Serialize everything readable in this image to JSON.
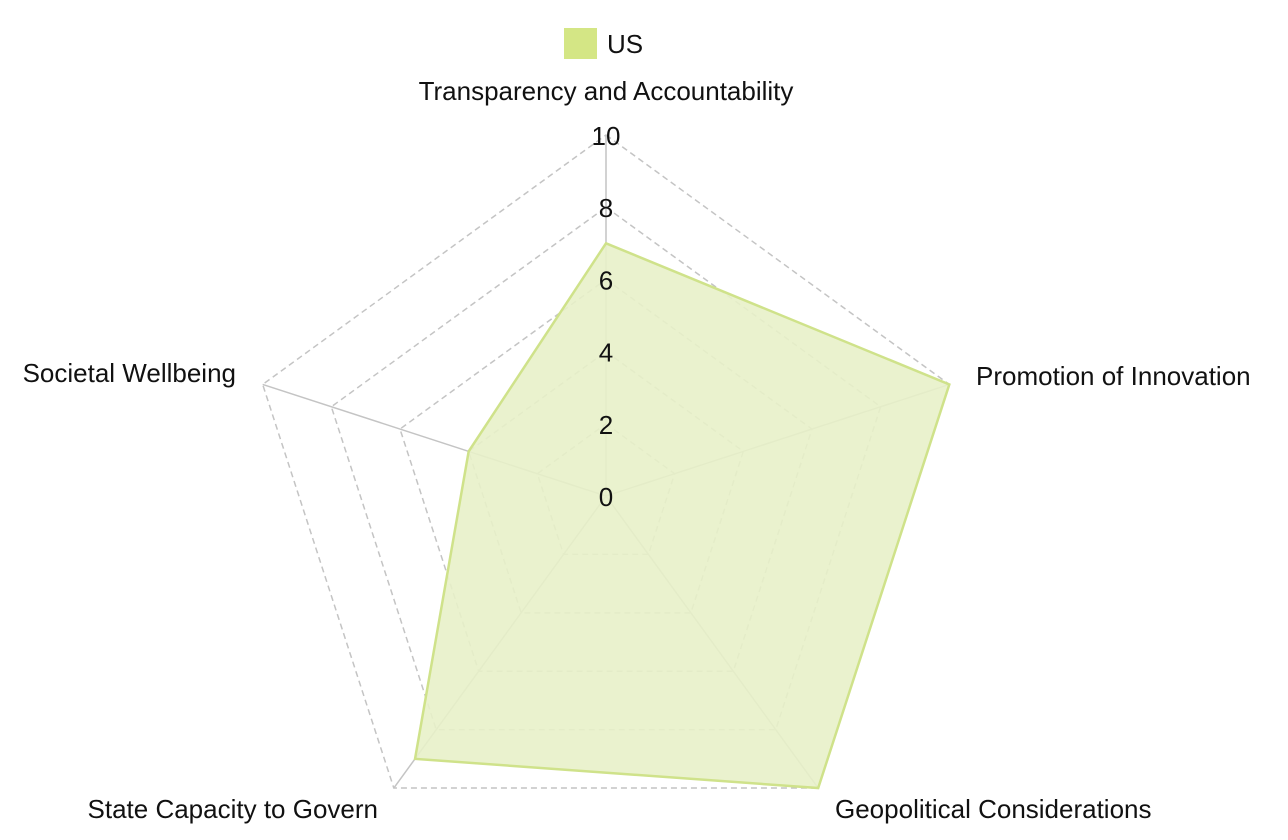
{
  "chart_data": {
    "type": "radar",
    "title": "",
    "axes": [
      "Transparency and Accountability",
      "Promotion of Innovation",
      "Geopolitical Considerations",
      "State Capacity to Govern",
      "Societal Wellbeing"
    ],
    "rlim": [
      0,
      10
    ],
    "ticks": [
      "0",
      "2",
      "4",
      "6",
      "8",
      "10"
    ],
    "grid": true,
    "legend_position": "top-center",
    "series": [
      {
        "name": "US",
        "values": [
          7,
          10,
          10,
          9,
          4
        ],
        "fill_color": "#e8f1c9",
        "line_color": "#cfe28a",
        "legend_color": "#d4e685"
      }
    ]
  }
}
